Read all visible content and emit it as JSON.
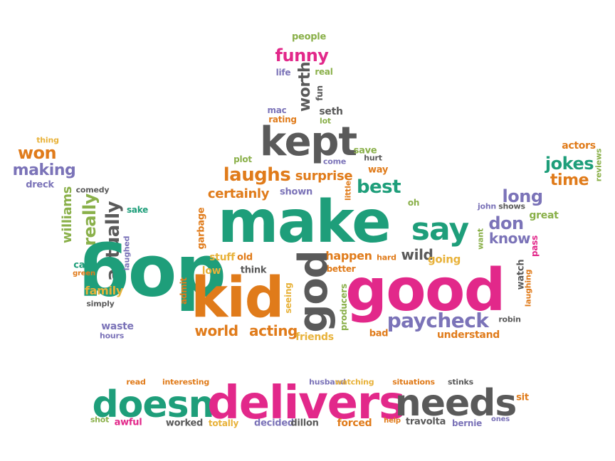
{
  "colors": {
    "teal": "#1e9e7a",
    "pink": "#e2288a",
    "orange": "#e07b1a",
    "purple": "#7b73b8",
    "gray": "#5a5a5a",
    "olive": "#8ab04a",
    "yellow": "#e8b23a"
  },
  "words": [
    {
      "text": "people"
    },
    {
      "text": "funny"
    },
    {
      "text": "life"
    },
    {
      "text": "real"
    },
    {
      "text": "worth"
    },
    {
      "text": "fun"
    },
    {
      "text": "mac"
    },
    {
      "text": "seth"
    },
    {
      "text": "rating"
    },
    {
      "text": "lot"
    },
    {
      "text": "kept"
    },
    {
      "text": "thing"
    },
    {
      "text": "won"
    },
    {
      "text": "making"
    },
    {
      "text": "dreck"
    },
    {
      "text": "plot"
    },
    {
      "text": "come"
    },
    {
      "text": "save"
    },
    {
      "text": "hurt"
    },
    {
      "text": "actors"
    },
    {
      "text": "jokes"
    },
    {
      "text": "time"
    },
    {
      "text": "reviews"
    },
    {
      "text": "laughs"
    },
    {
      "text": "surprise"
    },
    {
      "text": "way"
    },
    {
      "text": "comedy"
    },
    {
      "text": "williams"
    },
    {
      "text": "really"
    },
    {
      "text": "actually"
    },
    {
      "text": "sake"
    },
    {
      "text": "certainly"
    },
    {
      "text": "shown"
    },
    {
      "text": "little"
    },
    {
      "text": "best"
    },
    {
      "text": "long"
    },
    {
      "text": "oh"
    },
    {
      "text": "john"
    },
    {
      "text": "shows"
    },
    {
      "text": "great"
    },
    {
      "text": "make"
    },
    {
      "text": "say"
    },
    {
      "text": "don"
    },
    {
      "text": "want"
    },
    {
      "text": "know"
    },
    {
      "text": "pass"
    },
    {
      "text": "garbage"
    },
    {
      "text": "dog"
    },
    {
      "text": "laughed"
    },
    {
      "text": "stuff"
    },
    {
      "text": "old"
    },
    {
      "text": "happen"
    },
    {
      "text": "hard"
    },
    {
      "text": "wild"
    },
    {
      "text": "going"
    },
    {
      "text": "cast"
    },
    {
      "text": "green"
    },
    {
      "text": "low"
    },
    {
      "text": "think"
    },
    {
      "text": "better"
    },
    {
      "text": "family"
    },
    {
      "text": "kid"
    },
    {
      "text": "admit"
    },
    {
      "text": "god"
    },
    {
      "text": "producers"
    },
    {
      "text": "good"
    },
    {
      "text": "watch"
    },
    {
      "text": "laughing"
    },
    {
      "text": "simply"
    },
    {
      "text": "seeing"
    },
    {
      "text": "paycheck"
    },
    {
      "text": "robin"
    },
    {
      "text": "waste"
    },
    {
      "text": "hours"
    },
    {
      "text": "world"
    },
    {
      "text": "acting"
    },
    {
      "text": "friends"
    },
    {
      "text": "bad"
    },
    {
      "text": "understand"
    },
    {
      "text": "read"
    },
    {
      "text": "interesting"
    },
    {
      "text": "husband"
    },
    {
      "text": "watching"
    },
    {
      "text": "situations"
    },
    {
      "text": "stinks"
    },
    {
      "text": "doesn"
    },
    {
      "text": "delivers"
    },
    {
      "text": "needs"
    },
    {
      "text": "sit"
    },
    {
      "text": "shot"
    },
    {
      "text": "awful"
    },
    {
      "text": "worked"
    },
    {
      "text": "totally"
    },
    {
      "text": "decided"
    },
    {
      "text": "dillon"
    },
    {
      "text": "forced"
    },
    {
      "text": "help"
    },
    {
      "text": "travolta"
    },
    {
      "text": "bernie"
    },
    {
      "text": "ones"
    }
  ]
}
